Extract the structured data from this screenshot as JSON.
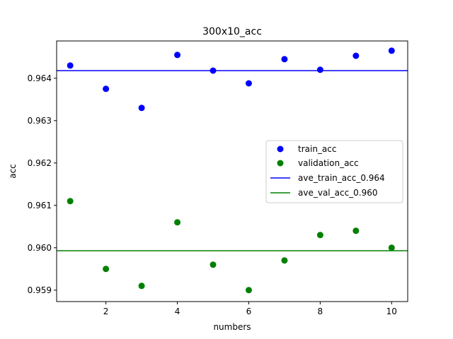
{
  "chart_data": {
    "type": "scatter",
    "title": "300x10_acc",
    "xlabel": "numbers",
    "ylabel": "acc",
    "xlim": [
      0.62,
      10.45
    ],
    "ylim": [
      0.95873,
      0.96488
    ],
    "xticks": [
      2,
      4,
      6,
      8,
      10
    ],
    "xtick_labels": [
      "2",
      "4",
      "6",
      "8",
      "10"
    ],
    "yticks": [
      0.959,
      0.96,
      0.961,
      0.962,
      0.963,
      0.964
    ],
    "ytick_labels": [
      "0.959",
      "0.960",
      "0.961",
      "0.962",
      "0.963",
      "0.964"
    ],
    "grid": false,
    "legend_position": "center-right",
    "series": [
      {
        "name": "train_acc",
        "kind": "scatter",
        "color": "#0000ff",
        "x": [
          1,
          2,
          3,
          4,
          5,
          6,
          7,
          8,
          9,
          10
        ],
        "values": [
          0.9643,
          0.96375,
          0.9633,
          0.96455,
          0.96418,
          0.96388,
          0.96445,
          0.9642,
          0.96453,
          0.96465
        ]
      },
      {
        "name": "validation_acc",
        "kind": "scatter",
        "color": "#008000",
        "x": [
          1,
          2,
          3,
          4,
          5,
          6,
          7,
          8,
          9,
          10
        ],
        "values": [
          0.9611,
          0.9595,
          0.9591,
          0.9606,
          0.9596,
          0.959,
          0.9597,
          0.9603,
          0.9604,
          0.96
        ]
      },
      {
        "name": "ave_train_acc_0.964",
        "kind": "hline",
        "color": "#0000ff",
        "y": 0.96418
      },
      {
        "name": "ave_val_acc_0.960",
        "kind": "hline",
        "color": "#008000",
        "y": 0.95993
      }
    ]
  }
}
